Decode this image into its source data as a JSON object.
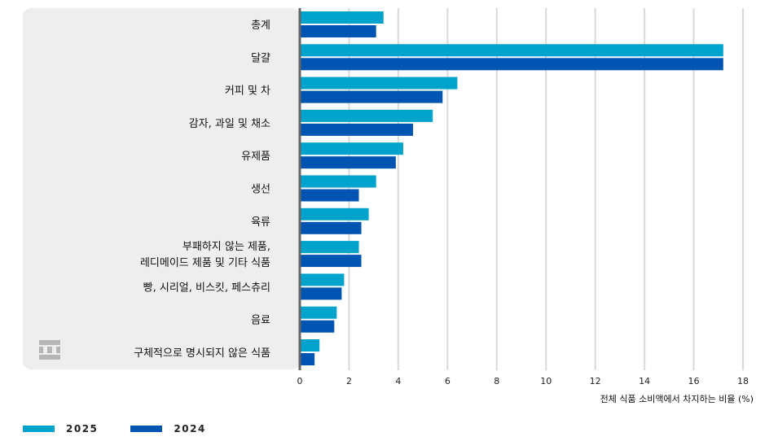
{
  "chart_data": {
    "type": "bar",
    "orientation": "horizontal",
    "title": "",
    "xlabel": "전체 식품 소비액에서 차지하는 비율 (%)",
    "ylabel": "",
    "xlim": [
      0,
      18
    ],
    "x_ticks": [
      0,
      2,
      4,
      6,
      8,
      10,
      12,
      14,
      16,
      18
    ],
    "grid": true,
    "legend_position": "bottom-left",
    "categories": [
      [
        "총계"
      ],
      [
        "달걀"
      ],
      [
        "커피 및 차"
      ],
      [
        "감자, 과일 및 채소"
      ],
      [
        "유제품"
      ],
      [
        "생선"
      ],
      [
        "육류"
      ],
      [
        "부패하지 않는 제품,",
        "레디메이드 제품 및 기타 식품"
      ],
      [
        "빵, 시리얼, 비스킷, 페스츄리"
      ],
      [
        "음료"
      ],
      [
        "구체적으로 명시되지 않은 식품"
      ]
    ],
    "series": [
      {
        "name": "2025",
        "color": "#00a3cc",
        "values": [
          3.4,
          17.2,
          6.4,
          5.4,
          4.2,
          3.1,
          2.8,
          2.4,
          1.8,
          1.5,
          0.8
        ]
      },
      {
        "name": "2024",
        "color": "#0055b3",
        "values": [
          3.1,
          17.2,
          5.8,
          4.6,
          3.9,
          2.4,
          2.5,
          2.5,
          1.7,
          1.4,
          0.6
        ]
      }
    ]
  },
  "logo": {
    "icon": "building-logo-icon"
  }
}
